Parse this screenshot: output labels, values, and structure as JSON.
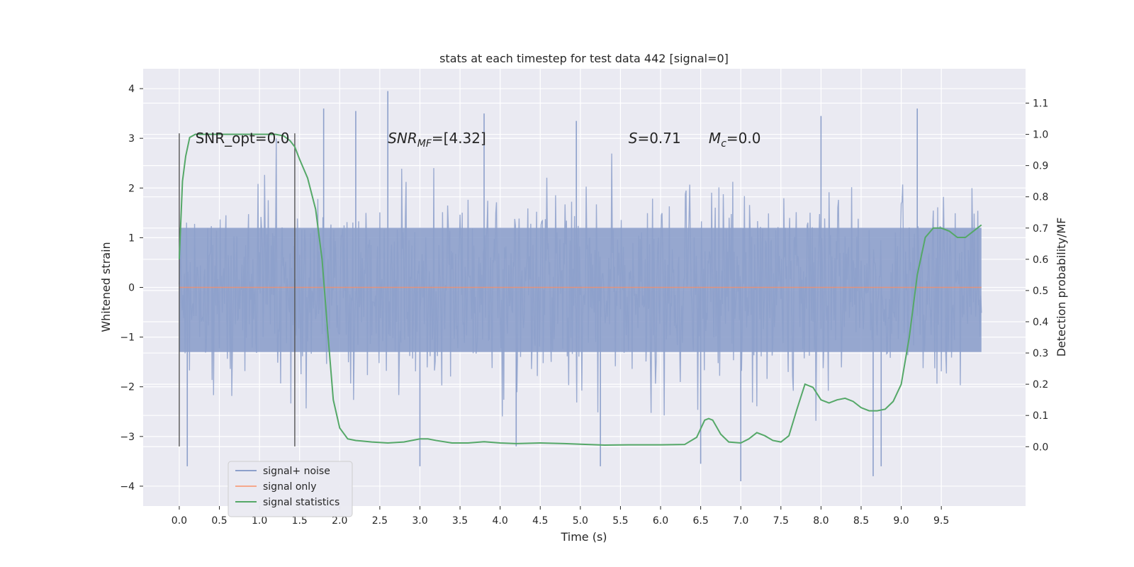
{
  "chart_data": {
    "type": "line",
    "title": "stats at each timestep for test data 442 [signal=0]",
    "xlabel": "Time (s)",
    "ylabel": "Whitened strain",
    "y2label": "Detection probability/MF",
    "xlim": [
      -0.45,
      10.55
    ],
    "ylim": [
      -4.4,
      4.4
    ],
    "y2lim": [
      -0.19,
      1.21
    ],
    "xticks": [
      0.0,
      0.5,
      1.0,
      1.5,
      2.0,
      2.5,
      3.0,
      3.5,
      4.0,
      4.5,
      5.0,
      5.5,
      6.0,
      6.5,
      7.0,
      7.5,
      8.0,
      8.5,
      9.0,
      9.5
    ],
    "xtick_labels": [
      "0.0",
      "0.5",
      "1.0",
      "1.5",
      "2.0",
      "2.5",
      "3.0",
      "3.5",
      "4.0",
      "4.5",
      "5.0",
      "5.5",
      "6.0",
      "6.5",
      "7.0",
      "7.5",
      "8.0",
      "8.5",
      "9.0",
      "9.5"
    ],
    "yticks": [
      -4,
      -3,
      -2,
      -1,
      0,
      1,
      2,
      3,
      4
    ],
    "ytick_labels": [
      "−4",
      "−3",
      "−2",
      "−1",
      "0",
      "1",
      "2",
      "3",
      "4"
    ],
    "y2ticks": [
      0.0,
      0.1,
      0.2,
      0.3,
      0.4,
      0.5,
      0.6,
      0.7,
      0.8,
      0.9,
      1.0,
      1.1
    ],
    "y2tick_labels": [
      "0.0",
      "0.1",
      "0.2",
      "0.3",
      "0.4",
      "0.5",
      "0.6",
      "0.7",
      "0.8",
      "0.9",
      "1.0",
      "1.1"
    ],
    "grid": true,
    "legend_position": "lower-left",
    "annotations": [
      {
        "kind": "plain",
        "text": "SNR_opt=0.0",
        "x": 0.2,
        "y": 3.0
      },
      {
        "kind": "snrmf",
        "base": "SNR",
        "sub": "MF",
        "rest": "=[4.32]",
        "x": 2.6,
        "y": 3.0
      },
      {
        "kind": "italic",
        "base": "S",
        "rest": "=0.71",
        "x": 5.6,
        "y": 3.0
      },
      {
        "kind": "mc",
        "base": "M",
        "sub": "c",
        "rest": "=0.0",
        "x": 6.6,
        "y": 3.0
      }
    ],
    "vlines": [
      {
        "x": 0.0,
        "ymin": -3.2,
        "ymax": 3.1
      },
      {
        "x": 1.44,
        "ymin": -3.2,
        "ymax": 3.1
      }
    ],
    "series": [
      {
        "name": "signal+ noise",
        "color": "#8da0cb",
        "noise": {
          "x_start": 0.0,
          "x_end": 10.0,
          "sigma": 1.0,
          "seed": 442,
          "core_top": 1.2,
          "core_bottom": -1.3,
          "peaks_high": [
            [
              2.6,
              3.95
            ],
            [
              3.8,
              3.5
            ],
            [
              1.8,
              3.6
            ],
            [
              2.2,
              3.55
            ],
            [
              4.95,
              3.35
            ],
            [
              8.0,
              3.45
            ],
            [
              9.2,
              3.6
            ]
          ],
          "peaks_low": [
            [
              0.1,
              -3.6
            ],
            [
              3.0,
              -3.6
            ],
            [
              6.5,
              -3.55
            ],
            [
              7.0,
              -3.9
            ],
            [
              8.65,
              -3.8
            ],
            [
              8.75,
              -3.6
            ],
            [
              5.25,
              -3.6
            ],
            [
              4.2,
              -3.2
            ]
          ]
        }
      },
      {
        "name": "signal only",
        "color": "#fc8d62",
        "x": [
          0.0,
          10.0
        ],
        "y": [
          0.0,
          0.0
        ]
      },
      {
        "name": "signal statistics",
        "color": "#55a868",
        "axis": "right",
        "x": [
          0.0,
          0.04,
          0.08,
          0.13,
          0.2,
          0.3,
          0.5,
          0.8,
          1.0,
          1.2,
          1.3,
          1.38,
          1.44,
          1.5,
          1.6,
          1.7,
          1.78,
          1.85,
          1.92,
          2.0,
          2.1,
          2.2,
          2.4,
          2.6,
          2.8,
          3.0,
          3.1,
          3.2,
          3.4,
          3.6,
          3.8,
          4.0,
          4.2,
          4.5,
          4.8,
          5.0,
          5.3,
          5.6,
          6.0,
          6.3,
          6.45,
          6.55,
          6.6,
          6.65,
          6.75,
          6.85,
          7.0,
          7.1,
          7.2,
          7.3,
          7.4,
          7.5,
          7.6,
          7.7,
          7.8,
          7.9,
          8.0,
          8.1,
          8.2,
          8.3,
          8.4,
          8.5,
          8.6,
          8.7,
          8.8,
          8.9,
          9.0,
          9.1,
          9.2,
          9.3,
          9.4,
          9.5,
          9.6,
          9.7,
          9.8,
          9.9,
          10.0
        ],
        "y": [
          0.6,
          0.85,
          0.93,
          0.99,
          1.0,
          1.0,
          1.0,
          1.0,
          1.0,
          1.0,
          0.995,
          0.98,
          0.96,
          0.92,
          0.86,
          0.76,
          0.6,
          0.37,
          0.15,
          0.06,
          0.025,
          0.02,
          0.015,
          0.012,
          0.015,
          0.025,
          0.025,
          0.02,
          0.012,
          0.012,
          0.016,
          0.012,
          0.01,
          0.012,
          0.01,
          0.008,
          0.005,
          0.006,
          0.006,
          0.007,
          0.03,
          0.085,
          0.09,
          0.085,
          0.04,
          0.015,
          0.012,
          0.025,
          0.045,
          0.035,
          0.02,
          0.015,
          0.035,
          0.12,
          0.2,
          0.19,
          0.15,
          0.14,
          0.15,
          0.155,
          0.145,
          0.125,
          0.115,
          0.115,
          0.12,
          0.145,
          0.2,
          0.35,
          0.55,
          0.67,
          0.7,
          0.7,
          0.69,
          0.67,
          0.67,
          0.69,
          0.71
        ]
      }
    ]
  }
}
